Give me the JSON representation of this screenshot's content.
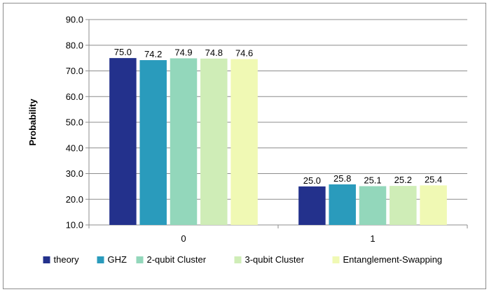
{
  "chart_data": {
    "type": "bar",
    "title": "",
    "xlabel": "",
    "ylabel": "Probability",
    "ylim": [
      10,
      90
    ],
    "yticks": [
      "10.0",
      "20.0",
      "30.0",
      "40.0",
      "50.0",
      "60.0",
      "70.0",
      "80.0",
      "90.0"
    ],
    "categories": [
      "0",
      "1"
    ],
    "grid": true,
    "legend": "bottom",
    "series": [
      {
        "name": "theory",
        "color": "#23318c",
        "values": [
          75.0,
          25.0
        ],
        "labels": [
          "75.0",
          "25.0"
        ]
      },
      {
        "name": "GHZ",
        "color": "#2a9bbc",
        "values": [
          74.2,
          25.8
        ],
        "labels": [
          "74.2",
          "25.8"
        ]
      },
      {
        "name": "2-qubit Cluster",
        "color": "#93d7bb",
        "values": [
          74.9,
          25.1
        ],
        "labels": [
          "74.9",
          "25.1"
        ]
      },
      {
        "name": "3-qubit Cluster",
        "color": "#cfedb7",
        "values": [
          74.8,
          25.2
        ],
        "labels": [
          "74.8",
          "25.2"
        ]
      },
      {
        "name": "Entanglement-Swapping",
        "color": "#f0f9b4",
        "values": [
          74.6,
          25.4
        ],
        "labels": [
          "74.6",
          "25.4"
        ]
      }
    ]
  }
}
